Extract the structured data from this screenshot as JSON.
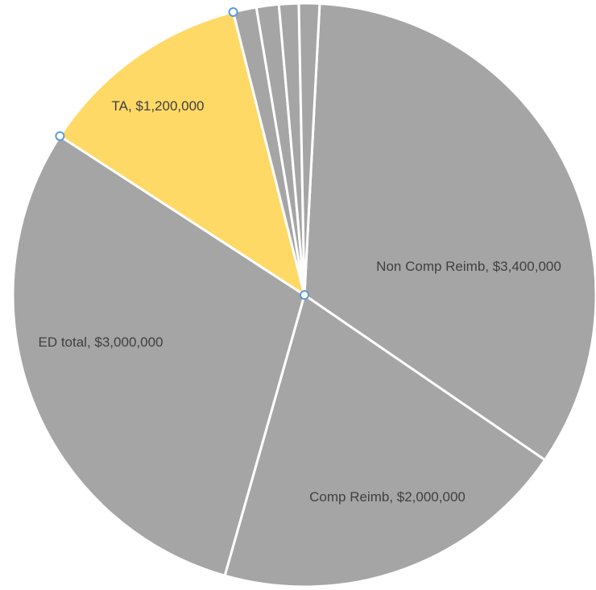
{
  "chart_data": {
    "type": "pie",
    "title": "",
    "start_angle_deg": 3,
    "colors": {
      "default": "#a5a5a5",
      "highlight": "#ffd966",
      "separator": "#ffffff",
      "handle": "#5b9bd5"
    },
    "slices": [
      {
        "label": "Non Comp  Reimb",
        "value": 3400000,
        "value_label": "$3,400,000",
        "color": "#a5a5a5",
        "selected": false
      },
      {
        "label": "Comp Reimb",
        "value": 2000000,
        "value_label": "$2,000,000",
        "color": "#a5a5a5",
        "selected": false
      },
      {
        "label": "ED total",
        "value": 3000000,
        "value_label": "$3,000,000",
        "color": "#a5a5a5",
        "selected": false
      },
      {
        "label": "TA",
        "value": 1200000,
        "value_label": "$1,200,000",
        "color": "#ffd966",
        "selected": true
      },
      {
        "label": "",
        "value": 130000,
        "value_label": "",
        "color": "#a5a5a5",
        "selected": false
      },
      {
        "label": "",
        "value": 125000,
        "value_label": "",
        "color": "#a5a5a5",
        "selected": false
      },
      {
        "label": "",
        "value": 110000,
        "value_label": "",
        "color": "#a5a5a5",
        "selected": false
      },
      {
        "label": "",
        "value": 115000,
        "value_label": "",
        "color": "#a5a5a5",
        "selected": false
      }
    ]
  }
}
